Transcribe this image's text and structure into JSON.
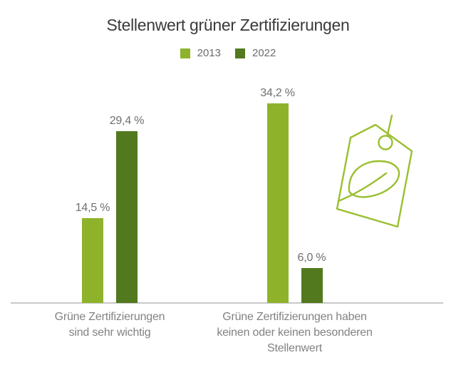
{
  "title": "Stellenwert grüner Zertifizierungen",
  "colors": {
    "light_green_2013": "#8EB32A",
    "dark_green_2022": "#53791E",
    "icon_green": "#9ABF2F",
    "title_text": "#3a3a39",
    "label_gray": "#828282",
    "axis_line_gray": "#c9c9c9"
  },
  "legend": [
    {
      "label": "2013",
      "color": "#8EB32A"
    },
    {
      "label": "2022",
      "color": "#53791E"
    }
  ],
  "chart_data": {
    "type": "bar",
    "title": "Stellenwert grüner Zertifizierungen",
    "categories": [
      "Grüne Zertifizierungen\nsind sehr wichtig",
      "Grüne Zertifizierungen haben\nkeinen oder keinen besonderen\nStellenwert"
    ],
    "series": [
      {
        "name": "2013",
        "color": "#8EB32A",
        "values": [
          14.5,
          34.2
        ],
        "labels": [
          "14,5 %",
          "34,2 %"
        ]
      },
      {
        "name": "2022",
        "color": "#53791E",
        "values": [
          29.4,
          6.0
        ],
        "labels": [
          "29,4 %",
          "6,0 %"
        ]
      }
    ],
    "xlabel": "",
    "ylabel": "",
    "ylim": [
      0,
      36
    ],
    "grid": false,
    "y_axis_visible": false,
    "legend_position": "top-center",
    "value_label_format": "comma-decimal with space before %"
  },
  "icon": {
    "name": "leaf-tag-icon",
    "description": "outlined price tag with leaf and string",
    "color": "#9ABF2F"
  }
}
